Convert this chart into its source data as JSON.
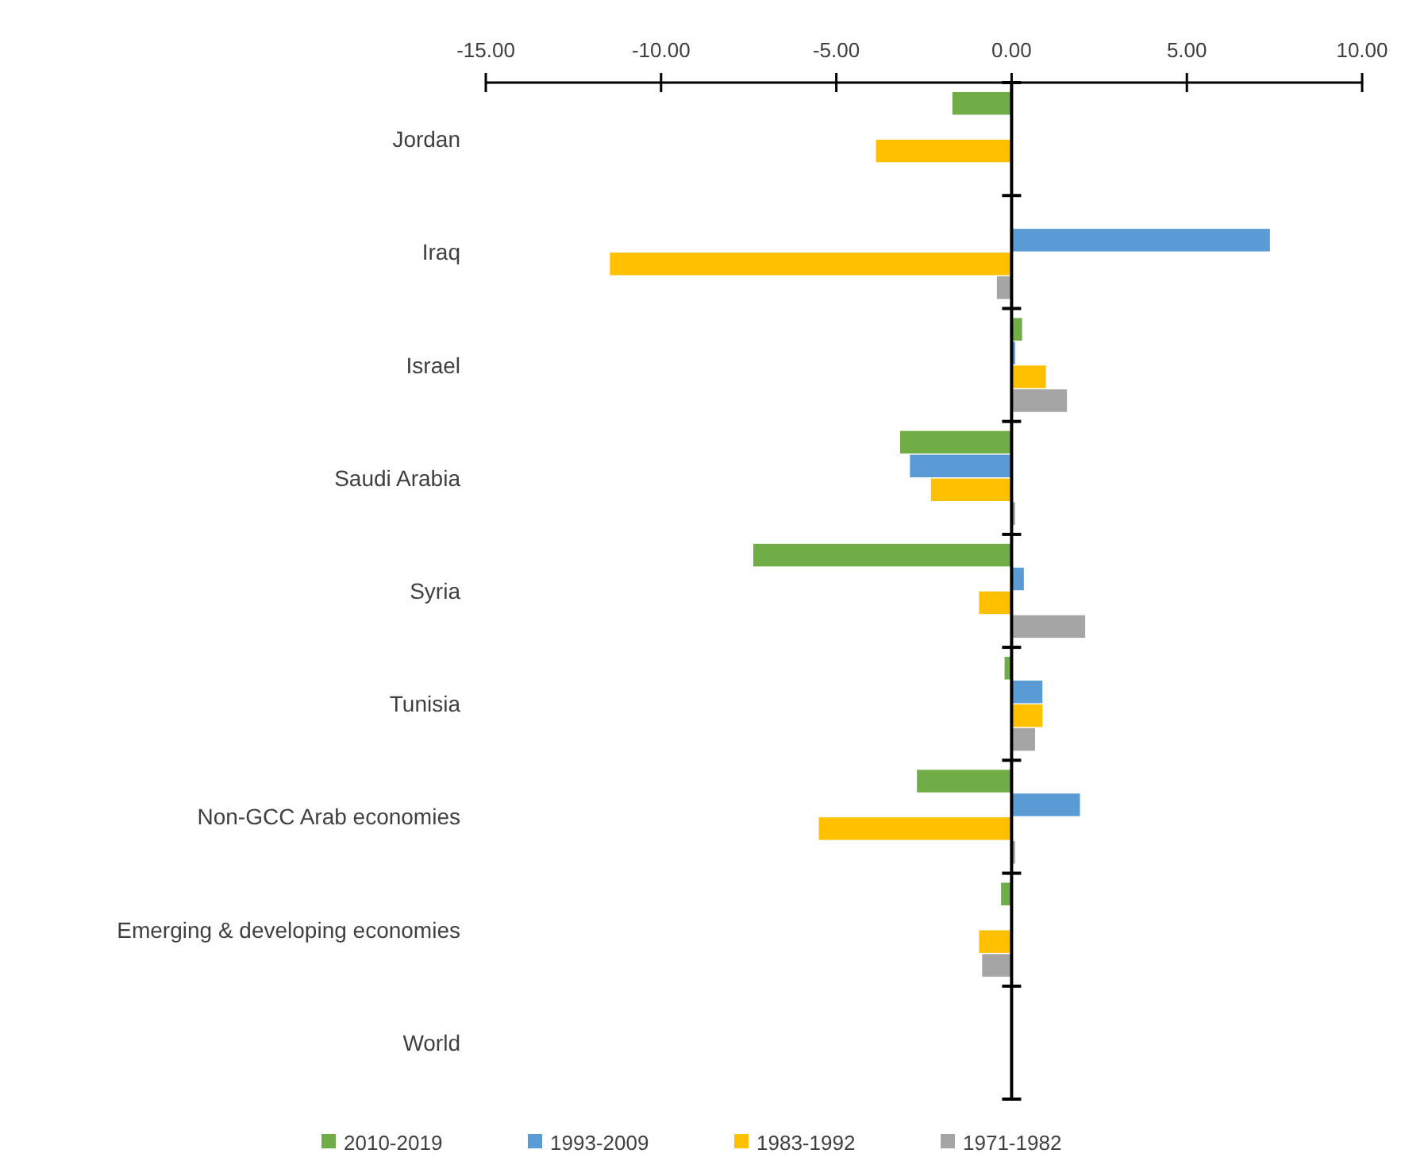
{
  "chart_data": {
    "type": "bar",
    "orientation": "horizontal",
    "categories": [
      "Jordan",
      "Iraq",
      "Israel",
      "Saudi Arabia",
      "Syria",
      "Tunisia",
      "Non-GCC Arab economies",
      "Emerging & developing economies",
      "World"
    ],
    "series": [
      {
        "name": "2010-2019",
        "color": "#70ad47",
        "values": [
          -1.69,
          null,
          0.3,
          -3.18,
          -7.37,
          -0.2,
          -2.7,
          -0.3,
          null
        ]
      },
      {
        "name": "1993-2009",
        "color": "#5b9bd5",
        "values": [
          null,
          7.37,
          0.1,
          -2.9,
          0.35,
          0.88,
          1.95,
          null,
          0
        ]
      },
      {
        "name": "1983-1992",
        "color": "#ffc000",
        "values": [
          -3.87,
          -11.46,
          0.98,
          -2.3,
          -0.93,
          0.88,
          -5.5,
          -0.93,
          null
        ]
      },
      {
        "name": "1971-1982",
        "color": "#a5a5a5",
        "values": [
          0,
          -0.42,
          1.58,
          0.1,
          2.1,
          0.67,
          0.1,
          -0.84,
          0
        ]
      }
    ],
    "xlim": [
      -15,
      10
    ],
    "xticks": [
      {
        "value": -15,
        "label": "-15.00"
      },
      {
        "value": -10,
        "label": "-10.00"
      },
      {
        "value": -5,
        "label": "-5.00"
      },
      {
        "value": 0,
        "label": "0.00"
      },
      {
        "value": 5,
        "label": "5.00"
      },
      {
        "value": 10,
        "label": "10.00"
      }
    ],
    "legend": "bottom"
  }
}
